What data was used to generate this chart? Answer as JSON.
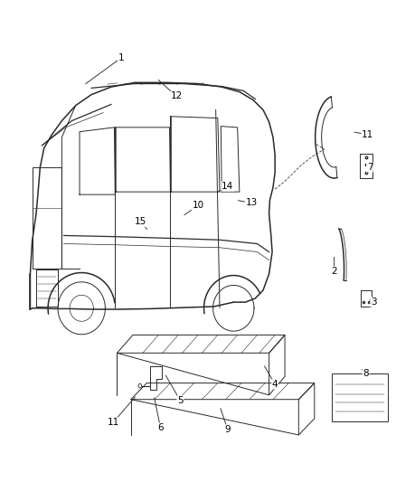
{
  "bg_color": "#ffffff",
  "line_color": "#2a2a2a",
  "label_color": "#000000",
  "fig_width": 4.38,
  "fig_height": 5.33,
  "dpi": 100,
  "label_positions": {
    "1": [
      0.305,
      0.895,
      0.21,
      0.845
    ],
    "12": [
      0.445,
      0.825,
      0.395,
      0.858
    ],
    "10": [
      0.5,
      0.625,
      0.46,
      0.605
    ],
    "15": [
      0.355,
      0.595,
      0.375,
      0.578
    ],
    "13": [
      0.635,
      0.63,
      0.595,
      0.635
    ],
    "14": [
      0.575,
      0.66,
      0.545,
      0.648
    ],
    "2": [
      0.845,
      0.505,
      0.845,
      0.535
    ],
    "3": [
      0.945,
      0.448,
      0.93,
      0.455
    ],
    "7": [
      0.935,
      0.695,
      0.92,
      0.7
    ],
    "11r": [
      0.93,
      0.755,
      0.89,
      0.76
    ],
    "4": [
      0.695,
      0.298,
      0.665,
      0.335
    ],
    "5": [
      0.455,
      0.268,
      0.415,
      0.318
    ],
    "9": [
      0.575,
      0.215,
      0.555,
      0.258
    ],
    "6": [
      0.405,
      0.218,
      0.388,
      0.278
    ],
    "11l": [
      0.285,
      0.228,
      0.345,
      0.278
    ],
    "8": [
      0.925,
      0.318,
      0.91,
      0.328
    ]
  }
}
